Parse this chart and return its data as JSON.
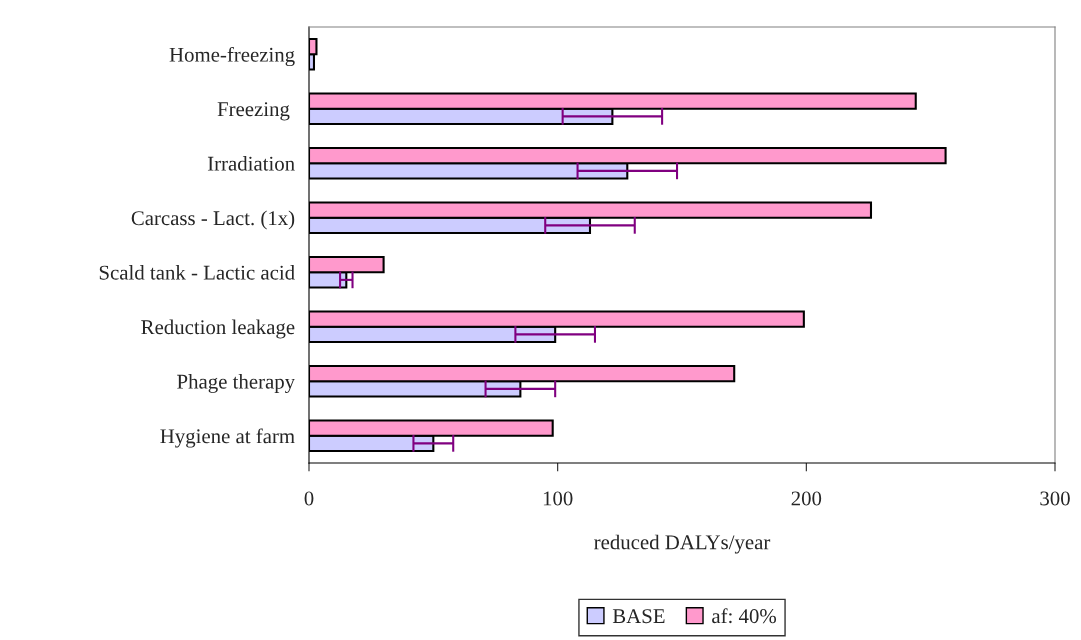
{
  "chart_data": {
    "type": "bar",
    "orientation": "horizontal",
    "xlabel": "reduced DALYs/year",
    "categories": [
      "Home-freezing",
      "Freezing ",
      "Irradiation",
      "Carcass - Lact. (1x)",
      "Scald tank - Lactic acid",
      "Reduction leakage",
      "Phage therapy",
      "Hygiene at farm"
    ],
    "series": [
      {
        "name": "BASE",
        "color": "#ccccff",
        "values": [
          2,
          122,
          128,
          113,
          15,
          99,
          85,
          50
        ],
        "errors": [
          null,
          20,
          20,
          18,
          2.5,
          16,
          14,
          8
        ]
      },
      {
        "name": "af: 40%",
        "color": "#ff99cc",
        "values": [
          3,
          244,
          256,
          226,
          30,
          199,
          171,
          98
        ]
      }
    ],
    "xlim": [
      0,
      300
    ],
    "xticks": [
      0,
      100,
      200,
      300
    ],
    "grid": false,
    "legend": "bottom"
  }
}
